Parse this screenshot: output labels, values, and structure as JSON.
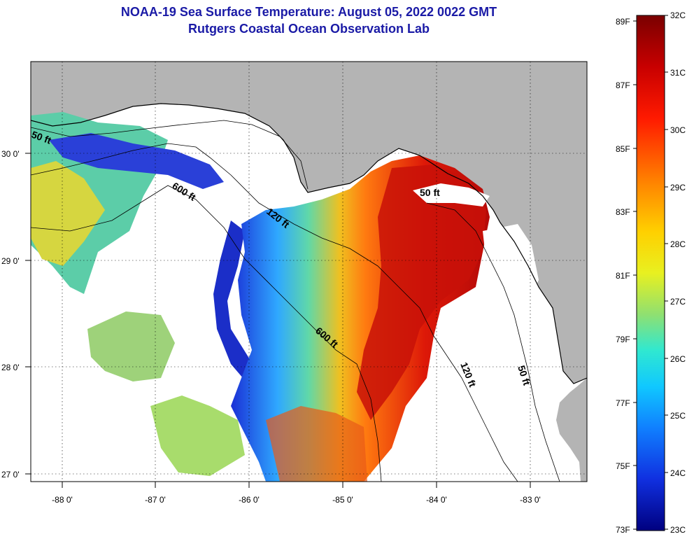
{
  "header": {
    "title_line1": "NOAA-19 Sea Surface Temperature:  August 05, 2022 0022 GMT",
    "title_line2": "Rutgers Coastal Ocean Observation Lab"
  },
  "map": {
    "x_ticks": [
      "-88 0'",
      "-87 0'",
      "-86 0'",
      "-85 0'",
      "-84 0'",
      "-83 0'"
    ],
    "y_ticks": [
      "30 0'",
      "29 0'",
      "28 0'",
      "27 0'"
    ],
    "contour_labels": {
      "c50_west": "50 ft",
      "c600_north": "600 ft",
      "c120_north": "120 ft",
      "c50_bigbend": "50 ft",
      "c600_south": "600 ft",
      "c120_south": "120 ft",
      "c50_south": "50 ft"
    }
  },
  "colorbar": {
    "fahrenheit": [
      "89F",
      "87F",
      "85F",
      "83F",
      "81F",
      "79F",
      "77F",
      "75F",
      "73F"
    ],
    "celsius": [
      "32C",
      "31C",
      "30C",
      "29C",
      "28C",
      "27C",
      "26C",
      "25C",
      "24C",
      "23C"
    ]
  },
  "colors": {
    "land": "#b4b4b4",
    "no_data": "#ffffff",
    "title": "#1a1aa6"
  }
}
